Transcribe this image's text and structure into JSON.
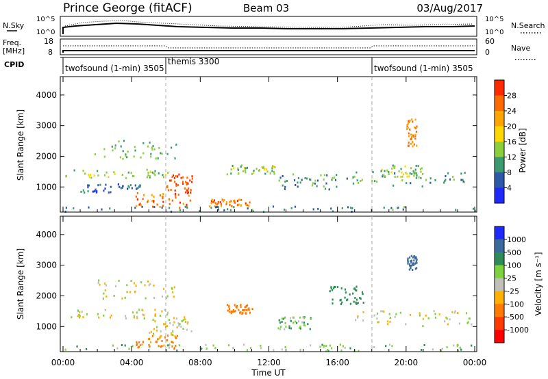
{
  "header": {
    "station": "Prince George (fitACF)",
    "beam": "Beam 03",
    "date": "03/Aug/2017"
  },
  "top_panels": {
    "nsky_label": "N.Sky",
    "nsearch_label": "N.Search",
    "noise_ticks": [
      "10^5",
      "10^0"
    ],
    "freq_label_1": "Freq.",
    "freq_label_2": "[MHz]",
    "freq_ticks": [
      "18",
      "8"
    ],
    "nave_label": "Nave",
    "nave_ticks": [
      "60",
      "0"
    ],
    "cpid_label": "CPID",
    "cpid_segments": [
      {
        "name": "twofsound (1-min) 3505",
        "start_h": 0,
        "end_h": 6
      },
      {
        "name": "themis 3300",
        "start_h": 6,
        "end_h": 18
      },
      {
        "name": "twofsound (1-min) 3505",
        "start_h": 18,
        "end_h": 24
      }
    ]
  },
  "chart_data": [
    {
      "type": "heatmap",
      "panel": "power",
      "ylabel": "Slant Range [km]",
      "colorbar_label": "Power [dB]",
      "colorbar_ticks": [
        "28",
        "24",
        "20",
        "16",
        "12",
        "8",
        "4"
      ],
      "colorbar_colors": [
        "#ff2a00",
        "#ff6a00",
        "#ffa500",
        "#ffd700",
        "#8ccf3c",
        "#3c9a6e",
        "#2c5aa8",
        "#1f2aff"
      ],
      "y_ticks": [
        "4000",
        "3000",
        "2000",
        "1000"
      ],
      "ylim": [
        180,
        4600
      ],
      "xlim_h": [
        0,
        24
      ],
      "scatter_regions": [
        {
          "t0": 0.1,
          "t1": 6.1,
          "r0": 1250,
          "r1": 1550,
          "power": 14
        },
        {
          "t0": 1.8,
          "t1": 6.6,
          "r0": 1900,
          "r1": 2500,
          "power": 12
        },
        {
          "t0": 1.0,
          "t1": 4.5,
          "r0": 800,
          "r1": 1100,
          "power": 6
        },
        {
          "t0": 4.2,
          "t1": 7.5,
          "r0": 300,
          "r1": 800,
          "power": 26
        },
        {
          "t0": 6.0,
          "t1": 7.5,
          "r0": 800,
          "r1": 1400,
          "power": 28
        },
        {
          "t0": 9.5,
          "t1": 12.5,
          "r0": 1400,
          "r1": 1700,
          "power": 13
        },
        {
          "t0": 8.5,
          "t1": 11.0,
          "r0": 350,
          "r1": 600,
          "power": 25
        },
        {
          "t0": 12.5,
          "t1": 16.0,
          "r0": 900,
          "r1": 1400,
          "power": 10
        },
        {
          "t0": 16.5,
          "t1": 23.8,
          "r0": 1000,
          "r1": 1500,
          "power": 11
        },
        {
          "t0": 18.5,
          "t1": 21.0,
          "r0": 1300,
          "r1": 1700,
          "power": 14
        },
        {
          "t0": 20.0,
          "t1": 20.6,
          "r0": 2300,
          "r1": 3200,
          "power": 24
        },
        {
          "t0": 0.0,
          "t1": 24.0,
          "r0": 180,
          "r1": 350,
          "power": 9
        }
      ]
    },
    {
      "type": "heatmap",
      "panel": "velocity",
      "ylabel": "Slant Range [km]",
      "colorbar_label": "Velocity [m s⁻¹]",
      "colorbar_ticks": [
        "1000",
        "500",
        "100",
        "25",
        "-25",
        "-100",
        "-500",
        "-1000"
      ],
      "colorbar_colors": [
        "#1f2aff",
        "#3b6a9e",
        "#2e8b57",
        "#7ed23e",
        "#c0c0b8",
        "#ffb000",
        "#ff7a00",
        "#ff3a00",
        "#ff0000"
      ],
      "y_ticks": [
        "4000",
        "3000",
        "2000",
        "1000"
      ],
      "ylim": [
        180,
        4600
      ],
      "xlim_h": [
        0,
        24
      ],
      "x_ticks": [
        "00:00",
        "04:00",
        "08:00",
        "12:00",
        "16:00",
        "20:00",
        "00:00"
      ],
      "xlabel": "Time UT",
      "scatter_regions": [
        {
          "t0": 0.1,
          "t1": 6.1,
          "r0": 1250,
          "r1": 1550,
          "vel": 0
        },
        {
          "t0": 1.8,
          "t1": 6.6,
          "r0": 1900,
          "r1": 2500,
          "vel": 0
        },
        {
          "t0": 4.2,
          "t1": 6.8,
          "r0": 250,
          "r1": 700,
          "vel": -150
        },
        {
          "t0": 5.0,
          "t1": 7.5,
          "r0": 700,
          "r1": 1300,
          "vel": 0
        },
        {
          "t0": 9.5,
          "t1": 11.0,
          "r0": 1400,
          "r1": 1700,
          "vel": -400
        },
        {
          "t0": 12.5,
          "t1": 14.5,
          "r0": 900,
          "r1": 1300,
          "vel": 60
        },
        {
          "t0": 15.5,
          "t1": 17.5,
          "r0": 1700,
          "r1": 2300,
          "vel": 300
        },
        {
          "t0": 16.5,
          "t1": 23.8,
          "r0": 1000,
          "r1": 1500,
          "vel": 0
        },
        {
          "t0": 20.0,
          "t1": 20.6,
          "r0": 2800,
          "r1": 3300,
          "vel": 700
        },
        {
          "t0": 0.0,
          "t1": 24.0,
          "r0": 180,
          "r1": 400,
          "vel": 60
        }
      ]
    }
  ]
}
